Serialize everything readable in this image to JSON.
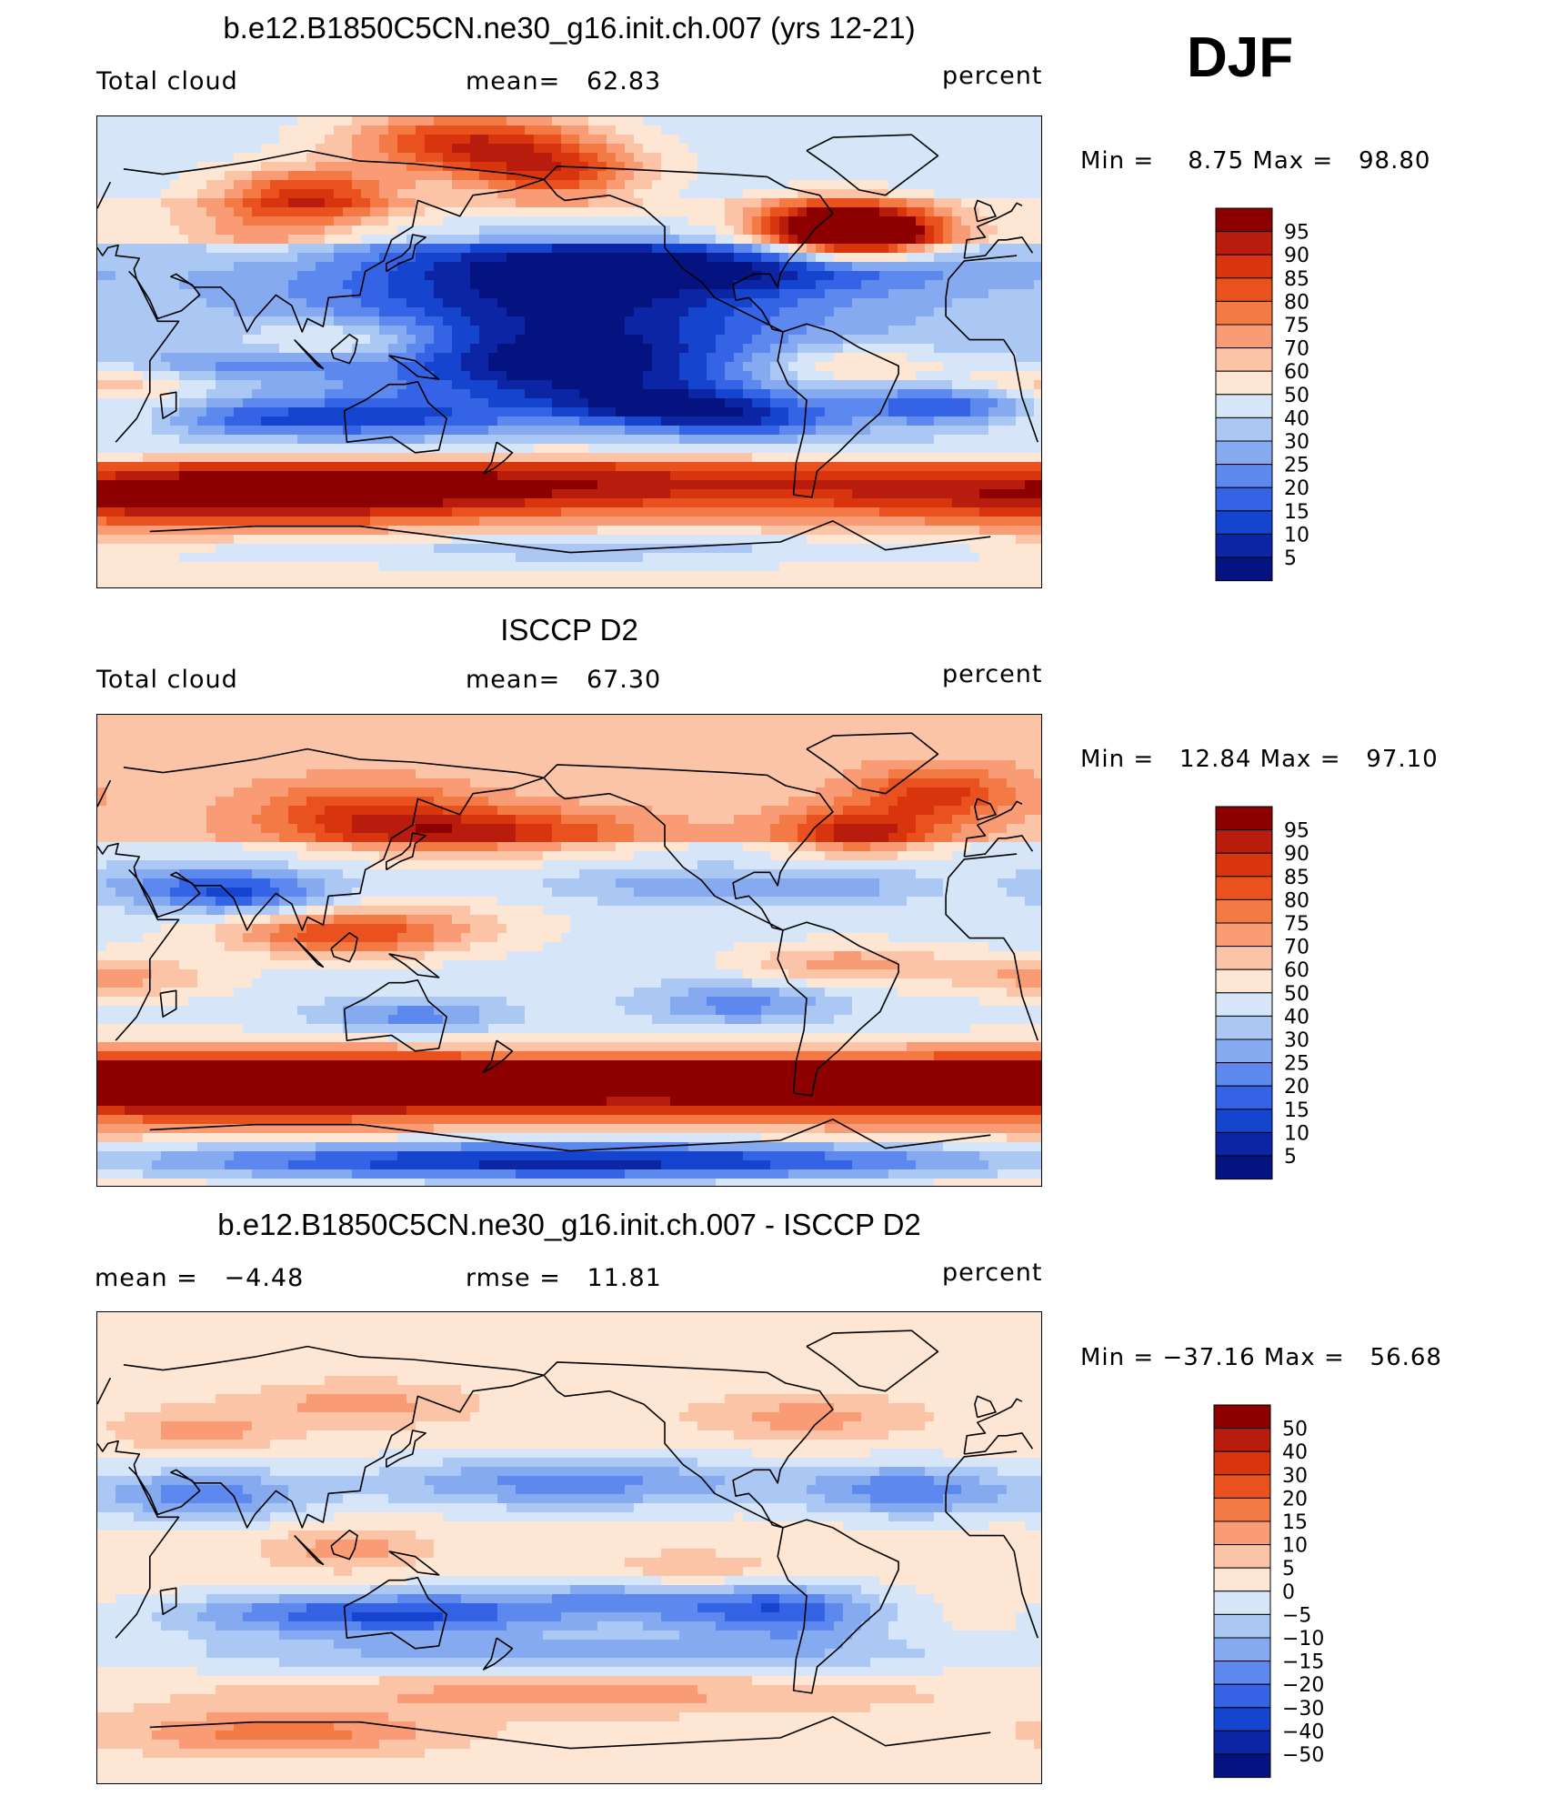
{
  "season": "DJF",
  "panels": [
    {
      "title": "b.e12.B1850C5CN.ne30_g16.init.ch.007 (yrs 12-21)",
      "left_label": "Total cloud",
      "center_label": "mean=   62.83",
      "right_label": "percent",
      "minmax": "Min =    8.75 Max =   98.80",
      "field": "model",
      "colorbar": {
        "labels": [
          "95",
          "90",
          "85",
          "80",
          "75",
          "70",
          "60",
          "50",
          "40",
          "30",
          "25",
          "20",
          "15",
          "10",
          "5"
        ],
        "colors": [
          "#8c0000",
          "#b71c0c",
          "#d8350e",
          "#e9521f",
          "#f47a45",
          "#f99b74",
          "#fcc4a6",
          "#fde6d3",
          "#d6e6f8",
          "#aac8f3",
          "#86aaf0",
          "#5d88ed",
          "#3563e6",
          "#1544cf",
          "#0b25a4",
          "#041380"
        ]
      }
    },
    {
      "title": "ISCCP D2",
      "left_label": "Total cloud",
      "center_label": "mean=   67.30",
      "right_label": "percent",
      "minmax": "Min =   12.84 Max =   97.10",
      "field": "obs",
      "colorbar": {
        "labels": [
          "95",
          "90",
          "85",
          "80",
          "75",
          "70",
          "60",
          "50",
          "40",
          "30",
          "25",
          "20",
          "15",
          "10",
          "5"
        ],
        "colors": [
          "#8c0000",
          "#b71c0c",
          "#d8350e",
          "#e9521f",
          "#f47a45",
          "#f99b74",
          "#fcc4a6",
          "#fde6d3",
          "#d6e6f8",
          "#aac8f3",
          "#86aaf0",
          "#5d88ed",
          "#3563e6",
          "#1544cf",
          "#0b25a4",
          "#041380"
        ]
      }
    },
    {
      "title": "b.e12.B1850C5CN.ne30_g16.init.ch.007 - ISCCP D2",
      "left_label": "mean =   −4.48",
      "center_label": "rmse =   11.81",
      "right_label": "percent",
      "minmax": "Min = −37.16 Max =   56.68",
      "field": "diff",
      "colorbar": {
        "labels": [
          "50",
          "40",
          "30",
          "20",
          "15",
          "10",
          "5",
          "0",
          "−5",
          "−10",
          "−15",
          "−20",
          "−30",
          "−40",
          "−50"
        ],
        "colors": [
          "#8c0000",
          "#b71c0c",
          "#d8350e",
          "#e9521f",
          "#f47a45",
          "#f99b74",
          "#fcc4a6",
          "#fde6d3",
          "#d6e6f8",
          "#aac8f3",
          "#86aaf0",
          "#5d88ed",
          "#3563e6",
          "#1544cf",
          "#0b25a4",
          "#041380"
        ]
      }
    }
  ]
}
